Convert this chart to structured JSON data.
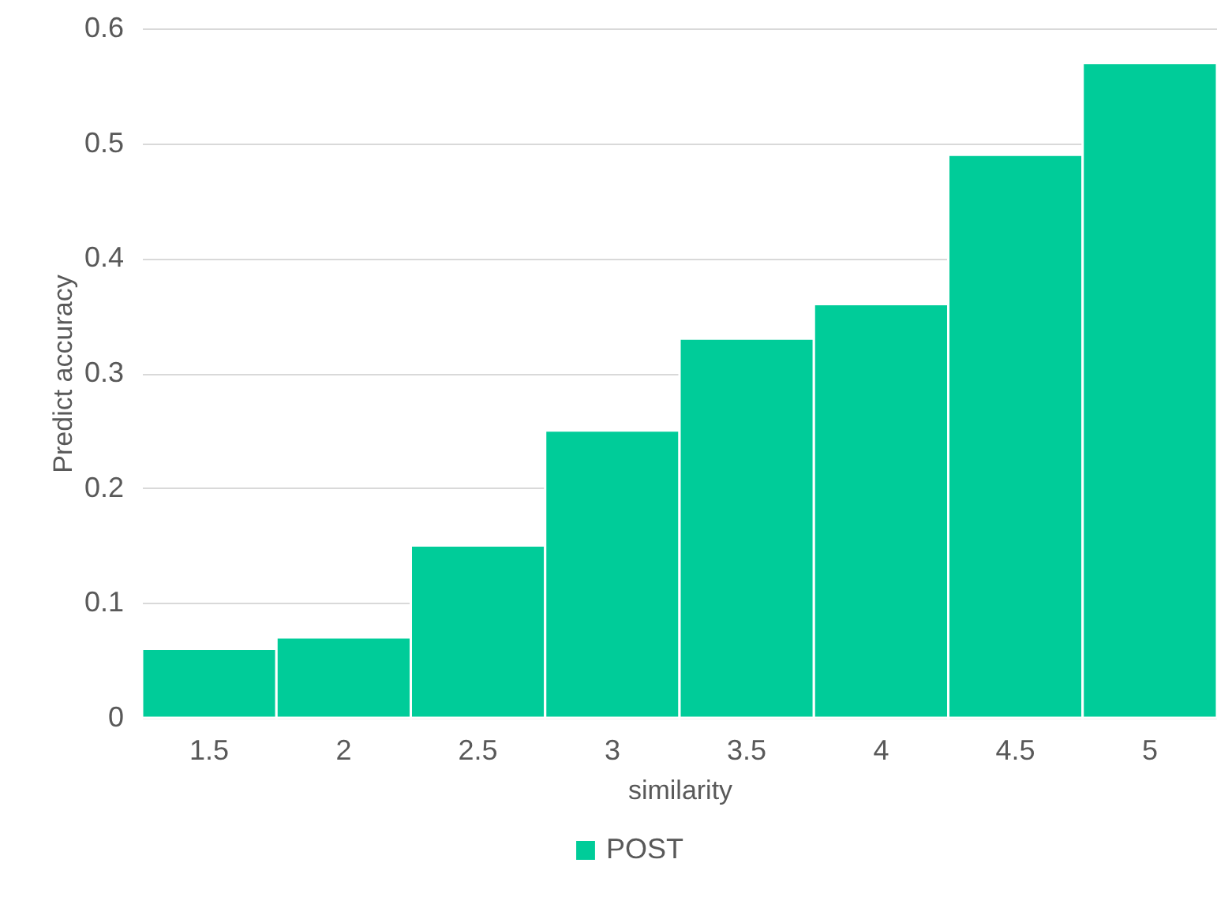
{
  "chart_data": {
    "type": "bar",
    "xlabel": "similarity",
    "ylabel": "Predict accuracy",
    "categories": [
      "1.5",
      "2",
      "2.5",
      "3",
      "3.5",
      "4",
      "4.5",
      "5"
    ],
    "series": [
      {
        "name": "POST",
        "color": "#00cc99",
        "values": [
          0.06,
          0.07,
          0.15,
          0.25,
          0.33,
          0.36,
          0.49,
          0.57
        ]
      }
    ],
    "ylim": [
      0,
      0.6
    ],
    "yticks": [
      0,
      0.1,
      0.2,
      0.3,
      0.4,
      0.5,
      0.6
    ],
    "grid": "y",
    "legend": "bottom"
  }
}
